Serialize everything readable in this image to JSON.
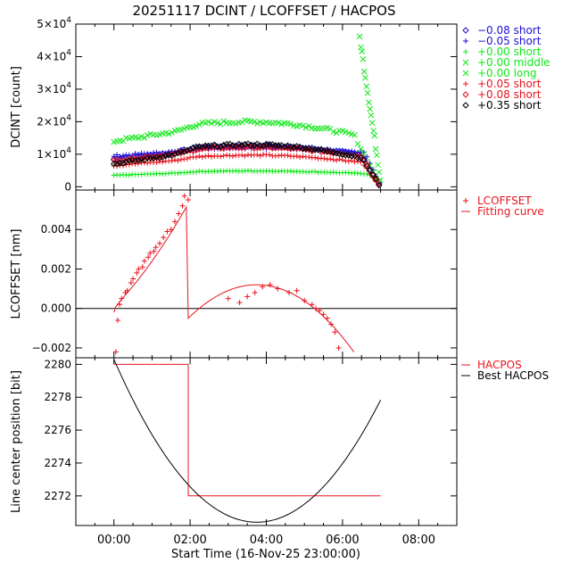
{
  "title": "20251117 DCINT / LCOFFSET / HACPOS",
  "xlabel": "Start Time (16-Nov-25 23:00:00)",
  "x_ticks": [
    "00:00",
    "02:00",
    "04:00",
    "06:00",
    "08:00"
  ],
  "x_tick_hours": [
    0,
    2,
    4,
    6,
    8
  ],
  "x_range_hours": [
    -1,
    9
  ],
  "colors": {
    "black": "#000000",
    "red": "#e8141e",
    "blue": "#1c10d8",
    "green": "#10e818",
    "white": "#ffffff"
  },
  "chart_data": [
    {
      "type": "scatter",
      "ylabel": "DCINT [count]",
      "ylim": [
        -1000,
        50000
      ],
      "y_ticks": [
        {
          "value": 0,
          "mantissa": "0",
          "exp": ""
        },
        {
          "value": 10000,
          "mantissa": "1×10",
          "exp": "4"
        },
        {
          "value": 20000,
          "mantissa": "2×10",
          "exp": "4"
        },
        {
          "value": 30000,
          "mantissa": "3×10",
          "exp": "4"
        },
        {
          "value": 40000,
          "mantissa": "4×10",
          "exp": "4"
        },
        {
          "value": 50000,
          "mantissa": "5×10",
          "exp": "4"
        }
      ],
      "legend_position": "right",
      "series": [
        {
          "name": "−0.08 short",
          "marker": "diamond",
          "color": "#1c10d8",
          "base": 8500,
          "peak": 13000,
          "drop_start": 6.5
        },
        {
          "name": "−0.05 short",
          "marker": "plus",
          "color": "#1c10d8",
          "base": 9500,
          "peak": 12200,
          "drop_start": 6.6
        },
        {
          "name": "+0.00 short",
          "marker": "plus",
          "color": "#10e818",
          "base": 3500,
          "peak": 5000,
          "drop_start": 6.7
        },
        {
          "name": "+0.00 middle",
          "marker": "cross",
          "color": "#10e818",
          "base": 14000,
          "peak": 20500,
          "drop_start": 6.3
        },
        {
          "name": "+0.00 long",
          "marker": "cross",
          "color": "#10e818",
          "base": 46000,
          "peak": 46000,
          "drop_start": 6.4
        },
        {
          "name": "+0.05 short",
          "marker": "plus",
          "color": "#e8141e",
          "base": 6500,
          "peak": 10000,
          "drop_start": 6.5
        },
        {
          "name": "+0.08 short",
          "marker": "diamond",
          "color": "#e8141e",
          "base": 8000,
          "peak": 12500,
          "drop_start": 6.5
        },
        {
          "name": "+0.35 short",
          "marker": "diamond",
          "color": "#000000",
          "base": 7000,
          "peak": 13500,
          "drop_start": 6.5
        }
      ]
    },
    {
      "type": "scatter",
      "ylabel": "LCOFFSET [nm]",
      "ylim": [
        -0.0025,
        0.006
      ],
      "y_ticks": [
        {
          "value": -0.002,
          "label": "−0.002"
        },
        {
          "value": 0.0,
          "label": "0.000"
        },
        {
          "value": 0.002,
          "label": "0.002"
        },
        {
          "value": 0.004,
          "label": "0.004"
        }
      ],
      "legend_position": "right",
      "series": [
        {
          "name": "LCOFFSET",
          "marker": "plus",
          "color": "#e8141e",
          "x": [
            0.05,
            0.1,
            0.15,
            0.2,
            0.3,
            0.35,
            0.45,
            0.5,
            0.6,
            0.65,
            0.75,
            0.8,
            0.9,
            0.95,
            1.05,
            1.1,
            1.2,
            1.3,
            1.4,
            1.5,
            1.6,
            1.7,
            1.8,
            1.85,
            1.95,
            3.0,
            3.3,
            3.5,
            3.7,
            3.9,
            4.1,
            4.3,
            4.6,
            4.8,
            5.0,
            5.2,
            5.3,
            5.4,
            5.5,
            5.6,
            5.7,
            5.8,
            5.9
          ],
          "y": [
            -0.0022,
            -0.0006,
            0.0002,
            0.0005,
            0.0008,
            0.0009,
            0.0013,
            0.0015,
            0.0018,
            0.002,
            0.0021,
            0.0024,
            0.0026,
            0.0028,
            0.0029,
            0.0031,
            0.0033,
            0.0036,
            0.0039,
            0.004,
            0.0044,
            0.0048,
            0.0052,
            0.0057,
            0.0055,
            0.0005,
            0.0003,
            0.0006,
            0.0008,
            0.0011,
            0.0012,
            0.001,
            0.0008,
            0.0009,
            0.0004,
            0.0002,
            0.0,
            -0.0001,
            -0.0003,
            -0.0005,
            -0.0008,
            -0.0012,
            -0.002
          ]
        },
        {
          "name": "Fitting curve",
          "marker": "line",
          "color": "#e8141e"
        }
      ]
    },
    {
      "type": "line",
      "ylabel": "Line center position [bit]",
      "ylim": [
        2270.2,
        2280.4
      ],
      "y_ticks": [
        {
          "value": 2272,
          "label": "2272"
        },
        {
          "value": 2274,
          "label": "2274"
        },
        {
          "value": 2276,
          "label": "2276"
        },
        {
          "value": 2278,
          "label": "2278"
        },
        {
          "value": 2280,
          "label": "2280"
        }
      ],
      "legend_position": "right",
      "series": [
        {
          "name": "HACPOS",
          "color": "#e8141e",
          "x": [
            0,
            1.95,
            1.95,
            7
          ],
          "y": [
            2280,
            2280,
            2272,
            2272
          ]
        },
        {
          "name": "Best HACPOS",
          "color": "#000000",
          "x_start": 0,
          "x_end": 7,
          "vertex_x": 3.75,
          "vertex_y": 2270.4,
          "y_at_start": 2280.3
        }
      ]
    }
  ]
}
